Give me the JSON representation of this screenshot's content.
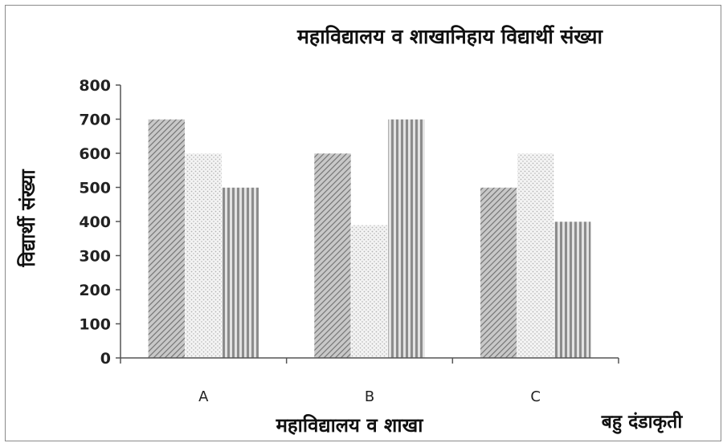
{
  "chart_data": {
    "type": "bar",
    "title": "महाविद्यालय व शाखानिहाय विद्यार्थी संख्या",
    "xlabel": "महाविद्यालय व शाखा",
    "ylabel": "विद्यार्थी संख्या",
    "caption": "बहु दंडाकृती",
    "categories": [
      "A",
      "B",
      "C"
    ],
    "series": [
      {
        "values": [
          700,
          600,
          500
        ],
        "pattern": "diagonal-hatch"
      },
      {
        "values": [
          600,
          390,
          600
        ],
        "pattern": "dotted"
      },
      {
        "values": [
          500,
          700,
          400
        ],
        "pattern": "vertical-stripes"
      }
    ],
    "ylim": [
      0,
      800
    ],
    "yticks": [
      0,
      100,
      200,
      300,
      400,
      500,
      600,
      700,
      800
    ],
    "grid": false,
    "legend": "none",
    "colors": {
      "axis": "#555555",
      "bar_fill": "#cfcfcf",
      "bar_line": "#7a7a7a"
    }
  }
}
